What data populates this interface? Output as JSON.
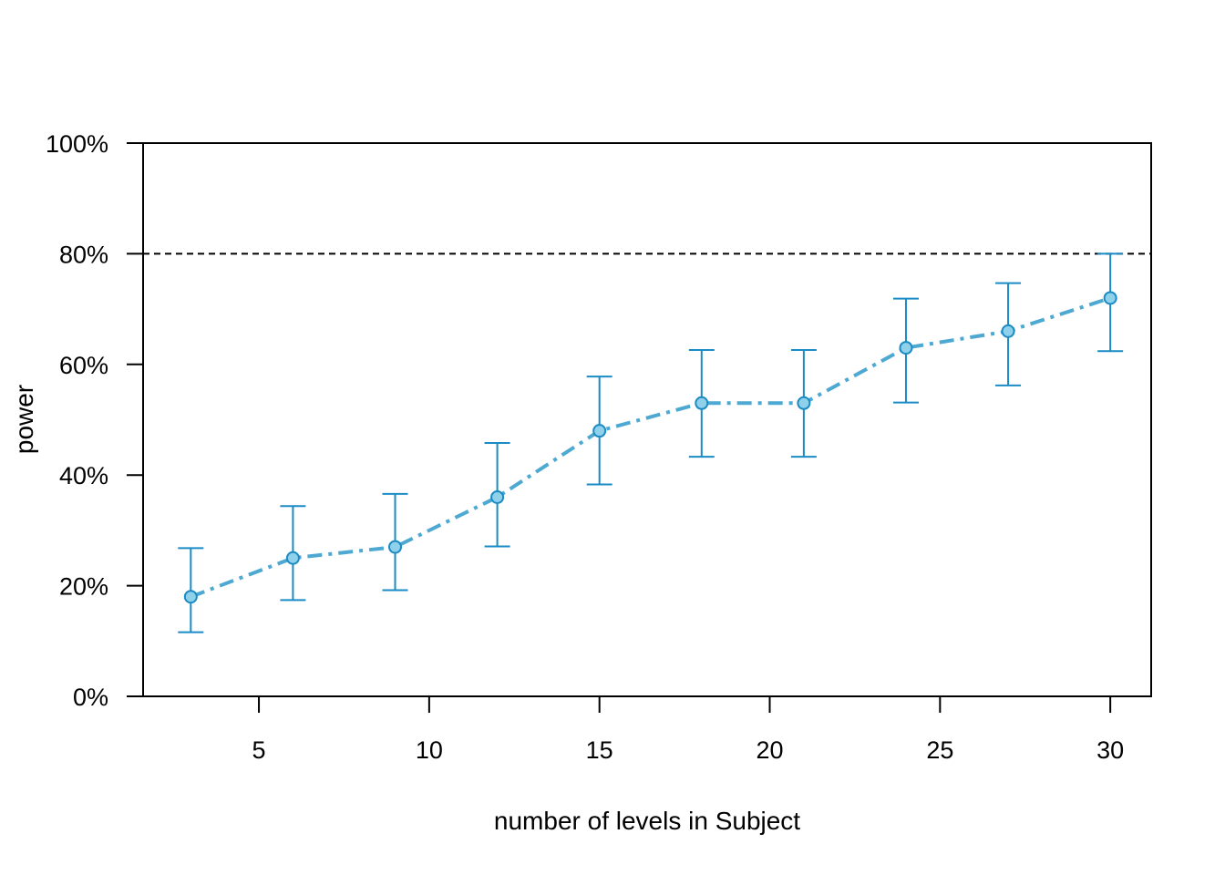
{
  "chart_data": {
    "type": "line",
    "title": "",
    "xlabel": "number of levels in Subject",
    "ylabel": "power",
    "xlim": [
      1.6,
      31.2
    ],
    "ylim": [
      0,
      100
    ],
    "x_ticks": [
      5,
      10,
      15,
      20,
      25,
      30
    ],
    "y_ticks": [
      0,
      20,
      40,
      60,
      80,
      100
    ],
    "y_tick_suffix": "%",
    "reference_line": {
      "y": 80,
      "style": "dashed"
    },
    "grid": false,
    "series": [
      {
        "x": [
          3,
          6,
          9,
          12,
          15,
          18,
          21,
          24,
          27,
          30
        ],
        "values": [
          18,
          25,
          27,
          36,
          48,
          53,
          53,
          63,
          66,
          72
        ],
        "lower": [
          11.6,
          17.4,
          19.2,
          27.1,
          38.3,
          43.3,
          43.3,
          53.1,
          56.2,
          62.4
        ],
        "upper": [
          26.8,
          34.4,
          36.6,
          45.8,
          57.8,
          62.6,
          62.6,
          71.9,
          74.7,
          80.0
        ]
      }
    ],
    "colors": {
      "line": "#4da9d1",
      "errorbar": "#1a8bc4",
      "point_fill": "#8fd0ea",
      "point_stroke": "#1a8bc4",
      "reference": "#000000"
    }
  }
}
